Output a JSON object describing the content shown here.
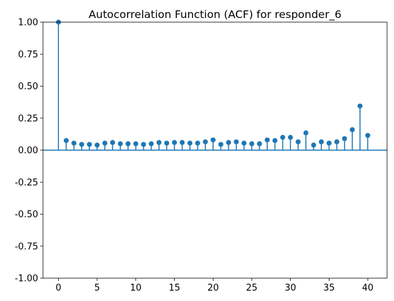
{
  "chart_data": {
    "type": "stem",
    "title": "Autocorrelation Function (ACF) for responder_6",
    "xlabel": "",
    "ylabel": "",
    "xlim": [
      -2,
      42.5
    ],
    "ylim": [
      -1.0,
      1.0
    ],
    "x_ticks": [
      0,
      5,
      10,
      15,
      20,
      25,
      30,
      35,
      40
    ],
    "y_ticks": [
      -1.0,
      -0.75,
      -0.5,
      -0.25,
      0.0,
      0.25,
      0.5,
      0.75,
      1.0
    ],
    "grid": false,
    "legend": "none",
    "baseline": 0,
    "colors": {
      "series": "#1f77b4",
      "axes": "#000000"
    },
    "series": [
      {
        "lags": [
          0,
          1,
          2,
          3,
          4,
          5,
          6,
          7,
          8,
          9,
          10,
          11,
          12,
          13,
          14,
          15,
          16,
          17,
          18,
          19,
          20,
          21,
          22,
          23,
          24,
          25,
          26,
          27,
          28,
          29,
          30,
          31,
          32,
          33,
          34,
          35,
          36,
          37,
          38,
          39,
          40
        ],
        "values": [
          1.0,
          0.075,
          0.055,
          0.045,
          0.045,
          0.04,
          0.055,
          0.06,
          0.05,
          0.05,
          0.05,
          0.045,
          0.05,
          0.06,
          0.055,
          0.06,
          0.06,
          0.055,
          0.055,
          0.065,
          0.08,
          0.045,
          0.06,
          0.065,
          0.055,
          0.05,
          0.05,
          0.08,
          0.075,
          0.1,
          0.1,
          0.065,
          0.135,
          0.04,
          0.065,
          0.055,
          0.065,
          0.09,
          0.16,
          0.345,
          0.115
        ]
      }
    ]
  }
}
